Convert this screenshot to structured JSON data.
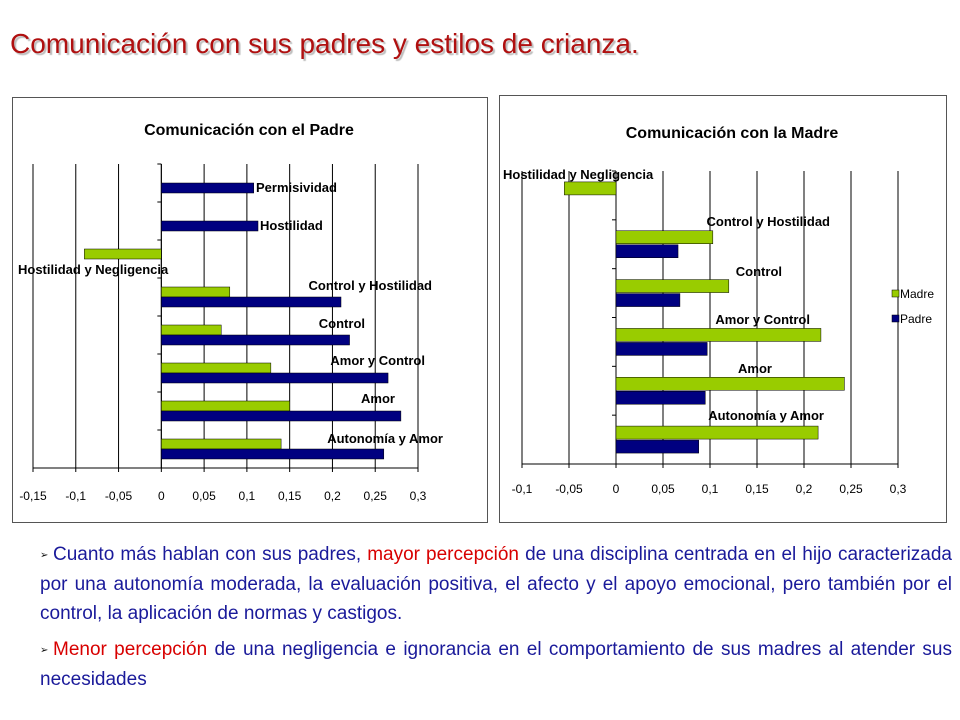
{
  "slide": {
    "title": "Comunicación con sus padres y estilos de crianza."
  },
  "bullets": [
    {
      "marker": "➢",
      "segments": [
        {
          "text": "Cuanto más hablan con sus padres, ",
          "color": "#1a1a9a"
        },
        {
          "text": "mayor percepción",
          "color": "#d80000"
        },
        {
          "text": " de una disciplina centrada en el hijo caracterizada por una autonomía moderada, la evaluación positiva, el afecto y el apoyo emocional, pero también por el control, la aplicación de normas y castigos.",
          "color": "#1a1a9a"
        }
      ]
    },
    {
      "marker": "➢",
      "segments": [
        {
          "text": "Menor percepción",
          "color": "#d80000"
        },
        {
          "text": " de una negligencia e ignorancia en el comportamiento de sus madres al atender sus necesidades",
          "color": "#1a1a9a"
        }
      ]
    }
  ],
  "chart_data": [
    {
      "type": "bar",
      "orientation": "horizontal",
      "title": "Comunicación con el Padre",
      "categories": [
        "Autonomía y Amor",
        "Amor",
        "Amor y Control",
        "Control",
        "Control y Hostilidad",
        "Hostilidad y Negligencia",
        "Hostilidad",
        "Permisividad"
      ],
      "series": [
        {
          "color": "#99cc00",
          "values": [
            0.14,
            0.15,
            0.128,
            0.07,
            0.08,
            -0.09,
            null,
            null
          ]
        },
        {
          "color": "#000080",
          "values": [
            0.26,
            0.28,
            0.265,
            0.22,
            0.21,
            null,
            0.113,
            0.108
          ]
        }
      ],
      "xlim": [
        -0.15,
        0.3
      ],
      "xticks": [
        "-0,15",
        "-0,1",
        "-0,05",
        "0",
        "0,05",
        "0,1",
        "0,15",
        "0,2",
        "0,25",
        "0,3"
      ],
      "grid": "vertical",
      "legend": "none"
    },
    {
      "type": "bar",
      "orientation": "horizontal",
      "title": "Comunicación con la Madre",
      "categories": [
        "Autonomía y Amor",
        "Amor",
        "Amor y Control",
        "Control",
        "Control y Hostilidad",
        "Hostilidad y Negligencia"
      ],
      "series": [
        {
          "name": "Madre",
          "color": "#99cc00",
          "values": [
            0.215,
            0.243,
            0.218,
            0.12,
            0.103,
            -0.055
          ]
        },
        {
          "name": "Padre",
          "color": "#000080",
          "values": [
            0.088,
            0.095,
            0.097,
            0.068,
            0.066,
            null
          ]
        }
      ],
      "xlim": [
        -0.1,
        0.3
      ],
      "xticks": [
        "-0,1",
        "-0,05",
        "0",
        "0,05",
        "0,1",
        "0,15",
        "0,2",
        "0,25",
        "0,3"
      ],
      "grid": "vertical",
      "legend": "right"
    }
  ]
}
